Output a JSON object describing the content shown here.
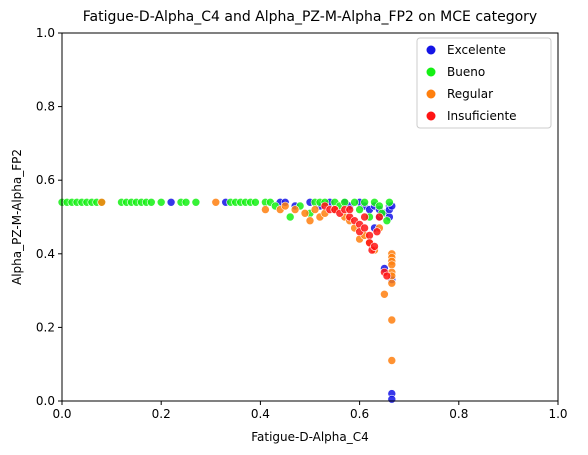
{
  "chart_data": {
    "type": "scatter",
    "title": "Fatigue-D-Alpha_C4 and Alpha_PZ-M-Alpha_FP2 on MCE category",
    "xlabel": "Fatigue-D-Alpha_C4",
    "ylabel": "Alpha_PZ-M-Alpha_FP2",
    "xlim": [
      0,
      1
    ],
    "ylim": [
      0,
      1
    ],
    "x_ticks": [
      "0.0",
      "0.2",
      "0.4",
      "0.6",
      "0.8",
      "1.0"
    ],
    "y_ticks": [
      "0.0",
      "0.2",
      "0.4",
      "0.6",
      "0.8",
      "1.0"
    ],
    "grid": false,
    "legend": "top-right",
    "series": [
      {
        "name": "Excelente",
        "color": "#1414e6",
        "points": [
          [
            0.22,
            0.54
          ],
          [
            0.33,
            0.54
          ],
          [
            0.44,
            0.54
          ],
          [
            0.45,
            0.54
          ],
          [
            0.47,
            0.53
          ],
          [
            0.5,
            0.54
          ],
          [
            0.52,
            0.53
          ],
          [
            0.54,
            0.54
          ],
          [
            0.55,
            0.52
          ],
          [
            0.57,
            0.54
          ],
          [
            0.58,
            0.53
          ],
          [
            0.6,
            0.54
          ],
          [
            0.61,
            0.53
          ],
          [
            0.62,
            0.52
          ],
          [
            0.63,
            0.53
          ],
          [
            0.64,
            0.52
          ],
          [
            0.65,
            0.51
          ],
          [
            0.66,
            0.53
          ],
          [
            0.66,
            0.5
          ],
          [
            0.66,
            0.52
          ],
          [
            0.665,
            0.53
          ],
          [
            0.64,
            0.5
          ],
          [
            0.63,
            0.47
          ],
          [
            0.65,
            0.36
          ],
          [
            0.665,
            0.33
          ],
          [
            0.665,
            0.02
          ],
          [
            0.665,
            0.005
          ]
        ]
      },
      {
        "name": "Bueno",
        "color": "#14f014",
        "points": [
          [
            0.0,
            0.54
          ],
          [
            0.01,
            0.54
          ],
          [
            0.02,
            0.54
          ],
          [
            0.03,
            0.54
          ],
          [
            0.04,
            0.54
          ],
          [
            0.05,
            0.54
          ],
          [
            0.06,
            0.54
          ],
          [
            0.07,
            0.54
          ],
          [
            0.08,
            0.54
          ],
          [
            0.12,
            0.54
          ],
          [
            0.13,
            0.54
          ],
          [
            0.14,
            0.54
          ],
          [
            0.15,
            0.54
          ],
          [
            0.16,
            0.54
          ],
          [
            0.17,
            0.54
          ],
          [
            0.18,
            0.54
          ],
          [
            0.2,
            0.54
          ],
          [
            0.24,
            0.54
          ],
          [
            0.25,
            0.54
          ],
          [
            0.27,
            0.54
          ],
          [
            0.34,
            0.54
          ],
          [
            0.35,
            0.54
          ],
          [
            0.36,
            0.54
          ],
          [
            0.37,
            0.54
          ],
          [
            0.38,
            0.54
          ],
          [
            0.39,
            0.54
          ],
          [
            0.41,
            0.54
          ],
          [
            0.42,
            0.54
          ],
          [
            0.43,
            0.53
          ],
          [
            0.46,
            0.5
          ],
          [
            0.48,
            0.53
          ],
          [
            0.5,
            0.51
          ],
          [
            0.51,
            0.54
          ],
          [
            0.52,
            0.54
          ],
          [
            0.53,
            0.54
          ],
          [
            0.55,
            0.54
          ],
          [
            0.56,
            0.53
          ],
          [
            0.57,
            0.54
          ],
          [
            0.59,
            0.54
          ],
          [
            0.6,
            0.52
          ],
          [
            0.61,
            0.54
          ],
          [
            0.62,
            0.5
          ],
          [
            0.63,
            0.54
          ],
          [
            0.64,
            0.53
          ],
          [
            0.645,
            0.51
          ],
          [
            0.66,
            0.54
          ],
          [
            0.655,
            0.49
          ]
        ]
      },
      {
        "name": "Regular",
        "color": "#ff7f0e",
        "points": [
          [
            0.08,
            0.54
          ],
          [
            0.31,
            0.54
          ],
          [
            0.41,
            0.52
          ],
          [
            0.44,
            0.52
          ],
          [
            0.45,
            0.53
          ],
          [
            0.47,
            0.52
          ],
          [
            0.49,
            0.51
          ],
          [
            0.5,
            0.49
          ],
          [
            0.51,
            0.52
          ],
          [
            0.52,
            0.5
          ],
          [
            0.53,
            0.51
          ],
          [
            0.55,
            0.52
          ],
          [
            0.57,
            0.5
          ],
          [
            0.58,
            0.49
          ],
          [
            0.59,
            0.47
          ],
          [
            0.6,
            0.44
          ],
          [
            0.61,
            0.45
          ],
          [
            0.62,
            0.43
          ],
          [
            0.63,
            0.41
          ],
          [
            0.64,
            0.47
          ],
          [
            0.65,
            0.29
          ],
          [
            0.665,
            0.4
          ],
          [
            0.665,
            0.39
          ],
          [
            0.665,
            0.38
          ],
          [
            0.665,
            0.37
          ],
          [
            0.665,
            0.35
          ],
          [
            0.665,
            0.34
          ],
          [
            0.665,
            0.32
          ],
          [
            0.665,
            0.22
          ],
          [
            0.665,
            0.11
          ]
        ]
      },
      {
        "name": "Insuficiente",
        "color": "#ff1414",
        "points": [
          [
            0.53,
            0.53
          ],
          [
            0.54,
            0.52
          ],
          [
            0.55,
            0.52
          ],
          [
            0.56,
            0.51
          ],
          [
            0.57,
            0.52
          ],
          [
            0.58,
            0.5
          ],
          [
            0.59,
            0.49
          ],
          [
            0.6,
            0.48
          ],
          [
            0.6,
            0.46
          ],
          [
            0.61,
            0.47
          ],
          [
            0.62,
            0.45
          ],
          [
            0.62,
            0.43
          ],
          [
            0.625,
            0.41
          ],
          [
            0.63,
            0.42
          ],
          [
            0.635,
            0.46
          ],
          [
            0.64,
            0.5
          ],
          [
            0.65,
            0.35
          ],
          [
            0.655,
            0.34
          ],
          [
            0.61,
            0.5
          ],
          [
            0.58,
            0.52
          ]
        ]
      }
    ]
  }
}
